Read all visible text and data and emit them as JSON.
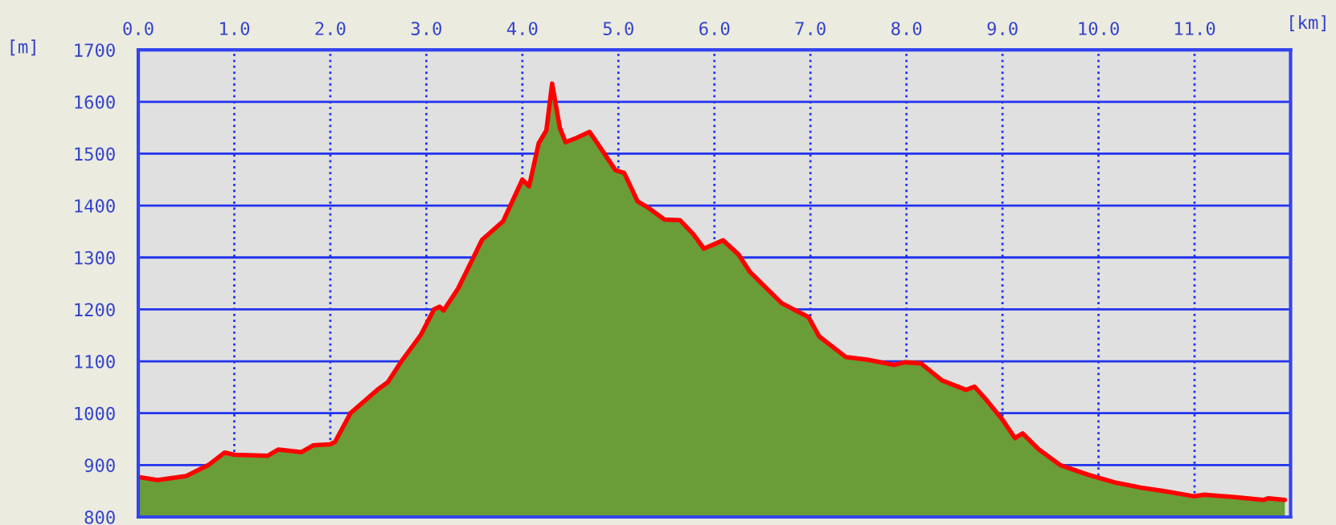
{
  "chart_data": {
    "type": "area",
    "xlabel": "[km]",
    "ylabel": "[m]",
    "xlim": [
      0,
      12
    ],
    "ylim": [
      800,
      1700
    ],
    "xticks": [
      {
        "value": 0,
        "label": "0.0"
      },
      {
        "value": 1,
        "label": "1.0"
      },
      {
        "value": 2,
        "label": "2.0"
      },
      {
        "value": 3,
        "label": "3.0"
      },
      {
        "value": 4,
        "label": "4.0"
      },
      {
        "value": 5,
        "label": "5.0"
      },
      {
        "value": 6,
        "label": "6.0"
      },
      {
        "value": 7,
        "label": "7.0"
      },
      {
        "value": 8,
        "label": "8.0"
      },
      {
        "value": 9,
        "label": "9.0"
      },
      {
        "value": 10,
        "label": "10.0"
      },
      {
        "value": 11,
        "label": "11.0"
      }
    ],
    "yticks": [
      800,
      900,
      1000,
      1100,
      1200,
      1300,
      1400,
      1500,
      1600,
      1700
    ],
    "grid": true,
    "line_style": "solid",
    "series": [
      {
        "color": "#6a9c38",
        "x": [
          0,
          0.2,
          0.5,
          0.73,
          0.9,
          1.0,
          1.35,
          1.46,
          1.7,
          1.82,
          2.0,
          2.05,
          2.21,
          2.49,
          2.6,
          2.74,
          2.94,
          3.08,
          3.14,
          3.18,
          3.33,
          3.49,
          3.58,
          3.8,
          4.0,
          4.07,
          4.17,
          4.25,
          4.31,
          4.39,
          4.45,
          4.56,
          4.7,
          4.84,
          4.97,
          5.06,
          5.2,
          5.31,
          5.48,
          5.64,
          5.78,
          5.89,
          6.09,
          6.25,
          6.37,
          6.7,
          6.98,
          7.09,
          7.37,
          7.59,
          7.87,
          7.98,
          8.15,
          8.37,
          8.62,
          8.71,
          8.82,
          8.99,
          9.13,
          9.21,
          9.38,
          9.6,
          9.88,
          10.16,
          10.43,
          10.71,
          10.99,
          11.1,
          11.44,
          11.72,
          11.77,
          11.94
        ],
        "values": [
          877,
          871,
          879,
          900,
          924,
          920,
          918,
          930,
          925,
          938,
          940,
          945,
          1000,
          1045,
          1060,
          1100,
          1150,
          1200,
          1205,
          1198,
          1240,
          1300,
          1334,
          1370,
          1450,
          1437,
          1520,
          1545,
          1635,
          1550,
          1522,
          1530,
          1542,
          1504,
          1468,
          1463,
          1408,
          1396,
          1373,
          1372,
          1345,
          1317,
          1333,
          1306,
          1272,
          1212,
          1185,
          1148,
          1108,
          1103,
          1093,
          1098,
          1096,
          1063,
          1045,
          1051,
          1028,
          990,
          952,
          961,
          930,
          900,
          882,
          867,
          857,
          849,
          840,
          843,
          838,
          833,
          836,
          833
        ]
      },
      {
        "type": "line",
        "color": "#ff0000",
        "x": [
          0,
          0.2,
          0.5,
          0.73,
          0.9,
          1.0,
          1.35,
          1.46,
          1.7,
          1.82,
          2.0,
          2.05,
          2.21,
          2.49,
          2.6,
          2.74,
          2.94,
          3.08,
          3.14,
          3.18,
          3.33,
          3.49,
          3.58,
          3.8,
          4.0,
          4.07,
          4.17,
          4.25,
          4.31,
          4.39,
          4.45,
          4.56,
          4.7,
          4.84,
          4.97,
          5.06,
          5.2,
          5.31,
          5.48,
          5.64,
          5.78,
          5.89,
          6.09,
          6.25,
          6.37,
          6.7,
          6.98,
          7.09,
          7.37,
          7.59,
          7.87,
          7.98,
          8.15,
          8.37,
          8.62,
          8.71,
          8.82,
          8.99,
          9.13,
          9.21,
          9.38,
          9.6,
          9.88,
          10.16,
          10.43,
          10.71,
          10.99,
          11.1,
          11.44,
          11.72,
          11.77,
          11.94
        ],
        "values": [
          877,
          871,
          879,
          900,
          924,
          920,
          918,
          930,
          925,
          938,
          940,
          945,
          1000,
          1045,
          1060,
          1100,
          1150,
          1200,
          1205,
          1198,
          1240,
          1300,
          1334,
          1370,
          1450,
          1437,
          1520,
          1545,
          1635,
          1550,
          1522,
          1530,
          1542,
          1504,
          1468,
          1463,
          1408,
          1396,
          1373,
          1372,
          1345,
          1317,
          1333,
          1306,
          1272,
          1212,
          1185,
          1148,
          1108,
          1103,
          1093,
          1098,
          1096,
          1063,
          1045,
          1051,
          1028,
          990,
          952,
          961,
          930,
          900,
          882,
          867,
          857,
          849,
          840,
          843,
          838,
          833,
          836,
          833
        ]
      }
    ]
  }
}
